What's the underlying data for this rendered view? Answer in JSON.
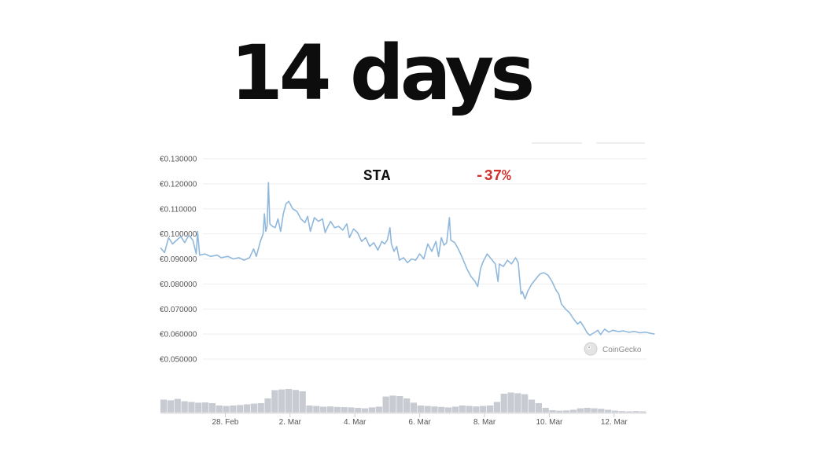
{
  "headline": "14 days",
  "chart_data": {
    "type": "line",
    "coin": "STA",
    "change": "-37%",
    "change_color": "#d0312d",
    "line_color": "#8fb8dc",
    "volume_color": "#c8cbd2",
    "watermark": "CoinGecko",
    "watermark_icon": "gecko-logo-icon",
    "grid": true,
    "x_start": "2021-02-26",
    "x_end": "2021-03-13",
    "ylim": [
      0.05,
      0.13
    ],
    "y_ticks": [
      {
        "value": 0.13,
        "label": "€0.130000"
      },
      {
        "value": 0.12,
        "label": "€0.120000"
      },
      {
        "value": 0.11,
        "label": "€0.110000"
      },
      {
        "value": 0.1,
        "label": "€0.100000"
      },
      {
        "value": 0.09,
        "label": "€0.090000"
      },
      {
        "value": 0.08,
        "label": "€0.080000"
      },
      {
        "value": 0.07,
        "label": "€0.070000"
      },
      {
        "value": 0.06,
        "label": "€0.060000"
      },
      {
        "value": 0.05,
        "label": "€0.050000"
      }
    ],
    "x_ticks": [
      {
        "date": "2021-02-28",
        "label": "28. Feb"
      },
      {
        "date": "2021-03-02",
        "label": "2. Mar"
      },
      {
        "date": "2021-03-04",
        "label": "4. Mar"
      },
      {
        "date": "2021-03-06",
        "label": "6. Mar"
      },
      {
        "date": "2021-03-08",
        "label": "8. Mar"
      },
      {
        "date": "2021-03-10",
        "label": "10. Mar"
      },
      {
        "date": "2021-03-12",
        "label": "12. Mar"
      }
    ],
    "price": [
      [
        "2021-02-26T00:00",
        0.0945
      ],
      [
        "2021-02-26T03:00",
        0.0925
      ],
      [
        "2021-02-26T06:00",
        0.0985
      ],
      [
        "2021-02-26T09:00",
        0.096
      ],
      [
        "2021-02-26T12:00",
        0.0975
      ],
      [
        "2021-02-26T15:00",
        0.099
      ],
      [
        "2021-02-26T18:00",
        0.0965
      ],
      [
        "2021-02-26T21:00",
        0.0995
      ],
      [
        "2021-02-27T00:00",
        0.0975
      ],
      [
        "2021-02-27T02:30",
        0.092
      ],
      [
        "2021-02-27T03:30",
        0.101
      ],
      [
        "2021-02-27T05:00",
        0.0915
      ],
      [
        "2021-02-27T09:00",
        0.092
      ],
      [
        "2021-02-27T13:00",
        0.091
      ],
      [
        "2021-02-27T18:00",
        0.0915
      ],
      [
        "2021-02-27T21:00",
        0.0905
      ],
      [
        "2021-02-28T02:00",
        0.091
      ],
      [
        "2021-02-28T06:00",
        0.09
      ],
      [
        "2021-02-28T10:00",
        0.0905
      ],
      [
        "2021-02-28T14:00",
        0.0895
      ],
      [
        "2021-02-28T18:00",
        0.0905
      ],
      [
        "2021-02-28T21:00",
        0.094
      ],
      [
        "2021-02-28T23:00",
        0.091
      ],
      [
        "2021-03-01T02:00",
        0.097
      ],
      [
        "2021-03-01T04:00",
        0.1
      ],
      [
        "2021-03-01T05:00",
        0.108
      ],
      [
        "2021-03-01T06:00",
        0.101
      ],
      [
        "2021-03-01T07:00",
        0.103
      ],
      [
        "2021-03-01T08:00",
        0.1205
      ],
      [
        "2021-03-01T09:00",
        0.104
      ],
      [
        "2021-03-01T11:00",
        0.103
      ],
      [
        "2021-03-01T13:00",
        0.1025
      ],
      [
        "2021-03-01T15:00",
        0.106
      ],
      [
        "2021-03-01T17:00",
        0.101
      ],
      [
        "2021-03-01T19:00",
        0.108
      ],
      [
        "2021-03-01T21:00",
        0.112
      ],
      [
        "2021-03-01T23:00",
        0.113
      ],
      [
        "2021-03-02T02:00",
        0.11
      ],
      [
        "2021-03-02T05:00",
        0.109
      ],
      [
        "2021-03-02T08:00",
        0.106
      ],
      [
        "2021-03-02T11:00",
        0.1045
      ],
      [
        "2021-03-02T13:00",
        0.107
      ],
      [
        "2021-03-02T15:00",
        0.101
      ],
      [
        "2021-03-02T18:00",
        0.1065
      ],
      [
        "2021-03-02T21:00",
        0.105
      ],
      [
        "2021-03-03T00:00",
        0.106
      ],
      [
        "2021-03-03T02:00",
        0.1005
      ],
      [
        "2021-03-03T04:00",
        0.103
      ],
      [
        "2021-03-03T06:00",
        0.105
      ],
      [
        "2021-03-03T09:00",
        0.1025
      ],
      [
        "2021-03-03T12:00",
        0.103
      ],
      [
        "2021-03-03T15:00",
        0.1015
      ],
      [
        "2021-03-03T18:00",
        0.104
      ],
      [
        "2021-03-03T20:00",
        0.0985
      ],
      [
        "2021-03-03T23:00",
        0.102
      ],
      [
        "2021-03-04T02:00",
        0.1005
      ],
      [
        "2021-03-04T05:00",
        0.097
      ],
      [
        "2021-03-04T08:00",
        0.0985
      ],
      [
        "2021-03-04T11:00",
        0.095
      ],
      [
        "2021-03-04T14:00",
        0.0965
      ],
      [
        "2021-03-04T17:00",
        0.0935
      ],
      [
        "2021-03-04T20:00",
        0.097
      ],
      [
        "2021-03-04T22:00",
        0.096
      ],
      [
        "2021-03-05T00:00",
        0.0975
      ],
      [
        "2021-03-05T02:00",
        0.1025
      ],
      [
        "2021-03-05T03:00",
        0.096
      ],
      [
        "2021-03-05T05:00",
        0.093
      ],
      [
        "2021-03-05T07:00",
        0.095
      ],
      [
        "2021-03-05T09:00",
        0.0895
      ],
      [
        "2021-03-05T12:00",
        0.0905
      ],
      [
        "2021-03-05T15:00",
        0.0885
      ],
      [
        "2021-03-05T18:00",
        0.09
      ],
      [
        "2021-03-05T21:00",
        0.0895
      ],
      [
        "2021-03-06T00:00",
        0.092
      ],
      [
        "2021-03-06T03:00",
        0.09
      ],
      [
        "2021-03-06T06:00",
        0.096
      ],
      [
        "2021-03-06T09:00",
        0.093
      ],
      [
        "2021-03-06T12:00",
        0.097
      ],
      [
        "2021-03-06T14:00",
        0.091
      ],
      [
        "2021-03-06T16:00",
        0.0985
      ],
      [
        "2021-03-06T18:00",
        0.0955
      ],
      [
        "2021-03-06T20:00",
        0.0965
      ],
      [
        "2021-03-06T22:00",
        0.1065
      ],
      [
        "2021-03-06T23:00",
        0.0975
      ],
      [
        "2021-03-07T02:00",
        0.0965
      ],
      [
        "2021-03-07T05:00",
        0.0935
      ],
      [
        "2021-03-07T08:00",
        0.09
      ],
      [
        "2021-03-07T11:00",
        0.086
      ],
      [
        "2021-03-07T14:00",
        0.083
      ],
      [
        "2021-03-07T17:00",
        0.081
      ],
      [
        "2021-03-07T19:00",
        0.079
      ],
      [
        "2021-03-07T21:00",
        0.086
      ],
      [
        "2021-03-07T23:00",
        0.089
      ],
      [
        "2021-03-08T02:00",
        0.092
      ],
      [
        "2021-03-08T05:00",
        0.09
      ],
      [
        "2021-03-08T08:00",
        0.088
      ],
      [
        "2021-03-08T10:00",
        0.081
      ],
      [
        "2021-03-08T11:00",
        0.088
      ],
      [
        "2021-03-08T14:00",
        0.087
      ],
      [
        "2021-03-08T17:00",
        0.0895
      ],
      [
        "2021-03-08T20:00",
        0.088
      ],
      [
        "2021-03-08T23:00",
        0.0905
      ],
      [
        "2021-03-09T01:00",
        0.0885
      ],
      [
        "2021-03-09T03:00",
        0.076
      ],
      [
        "2021-03-09T04:00",
        0.077
      ],
      [
        "2021-03-09T06:00",
        0.074
      ],
      [
        "2021-03-09T08:00",
        0.077
      ],
      [
        "2021-03-09T11:00",
        0.08
      ],
      [
        "2021-03-09T14:00",
        0.082
      ],
      [
        "2021-03-09T17:00",
        0.084
      ],
      [
        "2021-03-09T20:00",
        0.0845
      ],
      [
        "2021-03-09T23:00",
        0.0835
      ],
      [
        "2021-03-10T02:00",
        0.081
      ],
      [
        "2021-03-10T05:00",
        0.0775
      ],
      [
        "2021-03-10T07:00",
        0.076
      ],
      [
        "2021-03-10T09:00",
        0.072
      ],
      [
        "2021-03-10T12:00",
        0.07
      ],
      [
        "2021-03-10T15:00",
        0.0685
      ],
      [
        "2021-03-10T18:00",
        0.066
      ],
      [
        "2021-03-10T21:00",
        0.064
      ],
      [
        "2021-03-10T23:00",
        0.065
      ],
      [
        "2021-03-11T02:00",
        0.0625
      ],
      [
        "2021-03-11T04:00",
        0.0605
      ],
      [
        "2021-03-11T06:00",
        0.0595
      ],
      [
        "2021-03-11T09:00",
        0.0605
      ],
      [
        "2021-03-11T12:00",
        0.0615
      ],
      [
        "2021-03-11T14:00",
        0.0598
      ],
      [
        "2021-03-11T17:00",
        0.062
      ],
      [
        "2021-03-11T20:00",
        0.0608
      ],
      [
        "2021-03-11T23:00",
        0.0615
      ],
      [
        "2021-03-12T03:00",
        0.061
      ],
      [
        "2021-03-12T07:00",
        0.0613
      ],
      [
        "2021-03-12T11:00",
        0.0607
      ],
      [
        "2021-03-12T15:00",
        0.0611
      ],
      [
        "2021-03-12T19:00",
        0.0605
      ],
      [
        "2021-03-12T23:00",
        0.0608
      ],
      [
        "2021-03-13T03:00",
        0.0603
      ],
      [
        "2021-03-13T06:00",
        0.06
      ]
    ],
    "volume_relative": [
      0.55,
      0.52,
      0.58,
      0.48,
      0.45,
      0.42,
      0.43,
      0.4,
      0.3,
      0.28,
      0.3,
      0.32,
      0.35,
      0.38,
      0.4,
      0.6,
      0.95,
      0.98,
      1.0,
      0.96,
      0.9,
      0.3,
      0.28,
      0.25,
      0.26,
      0.24,
      0.23,
      0.22,
      0.2,
      0.18,
      0.22,
      0.25,
      0.68,
      0.72,
      0.7,
      0.6,
      0.42,
      0.3,
      0.28,
      0.26,
      0.24,
      0.22,
      0.25,
      0.3,
      0.28,
      0.26,
      0.28,
      0.3,
      0.45,
      0.8,
      0.85,
      0.82,
      0.78,
      0.55,
      0.4,
      0.2,
      0.1,
      0.08,
      0.09,
      0.12,
      0.18,
      0.2,
      0.18,
      0.16,
      0.12,
      0.08,
      0.06,
      0.05,
      0.06,
      0.05
    ]
  }
}
